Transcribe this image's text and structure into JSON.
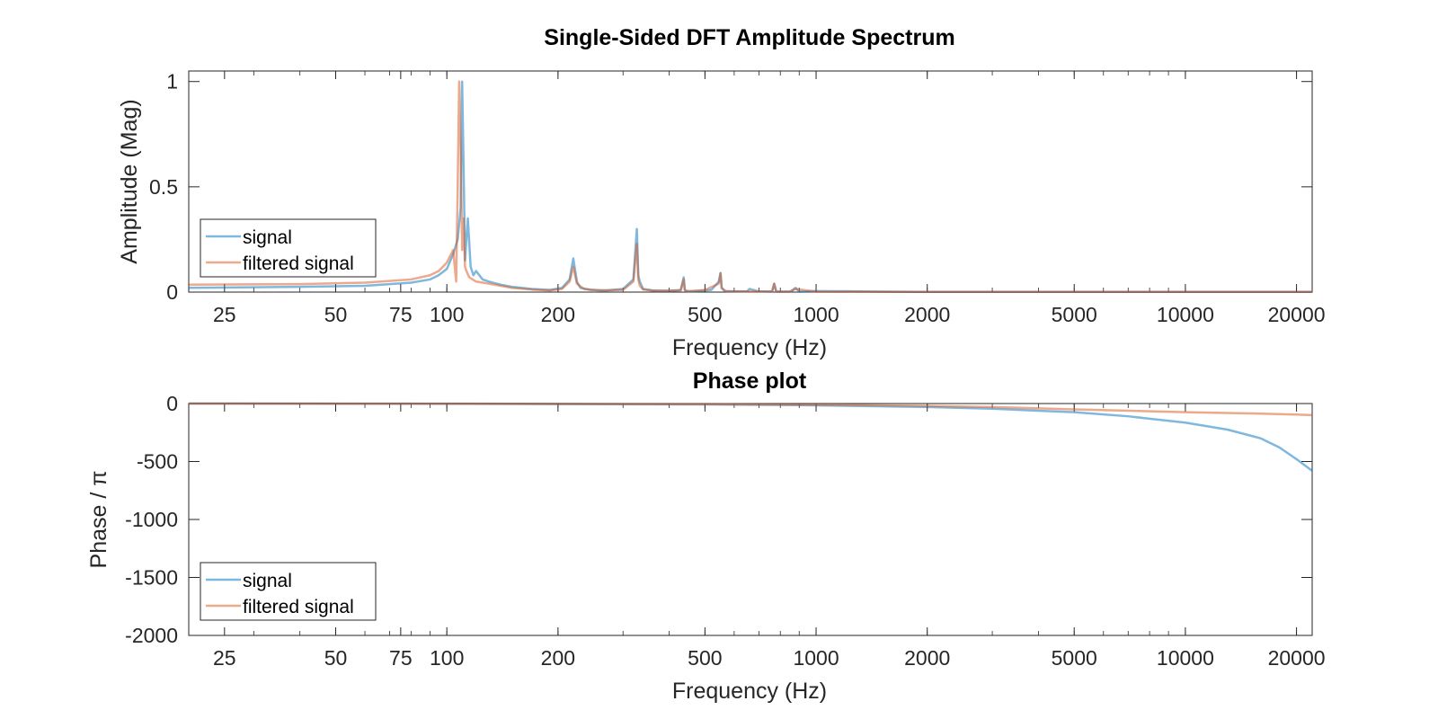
{
  "colors": {
    "signal": "#0072BD",
    "filtered": "#D95319",
    "axes": "#262626",
    "background": "#ffffff"
  },
  "chart_data": [
    {
      "type": "line",
      "title": "Single-Sided DFT Amplitude Spectrum",
      "xlabel": "Frequency (Hz)",
      "ylabel": "Amplitude (Mag)",
      "xscale": "log",
      "xlim": [
        20,
        22050
      ],
      "ylim": [
        0,
        1.05
      ],
      "xticks": [
        25,
        50,
        75,
        100,
        200,
        500,
        1000,
        2000,
        5000,
        10000,
        20000
      ],
      "xtick_labels": [
        "25",
        "50",
        "75",
        "100",
        "200",
        "500",
        "1000",
        "2000",
        "5000",
        "10000",
        "20000"
      ],
      "yticks": [
        0,
        0.5,
        1
      ],
      "ytick_labels": [
        "0",
        "0.5",
        "1"
      ],
      "grid": false,
      "legend_position": "bottom-left",
      "series": [
        {
          "name": "signal",
          "x": [
            20,
            40,
            60,
            80,
            90,
            95,
            100,
            104,
            107,
            109,
            110,
            111,
            112,
            114,
            116,
            118,
            120,
            125,
            130,
            140,
            150,
            170,
            190,
            205,
            215,
            220,
            225,
            230,
            245,
            270,
            300,
            320,
            327,
            330,
            333,
            340,
            360,
            400,
            430,
            438,
            441,
            445,
            470,
            520,
            545,
            551,
            555,
            565,
            600,
            650,
            660,
            700,
            760,
            770,
            780,
            850,
            880,
            900,
            1000,
            1100,
            1200,
            1300,
            1500,
            2000,
            3000,
            5000,
            10000,
            20000,
            22050
          ],
          "values": [
            0.02,
            0.025,
            0.03,
            0.045,
            0.06,
            0.08,
            0.11,
            0.18,
            0.25,
            0.4,
            1.0,
            0.6,
            0.15,
            0.35,
            0.12,
            0.08,
            0.1,
            0.06,
            0.05,
            0.035,
            0.025,
            0.015,
            0.01,
            0.02,
            0.06,
            0.16,
            0.05,
            0.02,
            0.01,
            0.008,
            0.015,
            0.06,
            0.3,
            0.08,
            0.05,
            0.015,
            0.008,
            0.006,
            0.01,
            0.07,
            0.01,
            0.005,
            0.004,
            0.01,
            0.05,
            0.09,
            0.02,
            0.005,
            0.003,
            0.003,
            0.015,
            0.003,
            0.002,
            0.04,
            0.002,
            0.002,
            0.02,
            0.002,
            0.005,
            0.004,
            0.004,
            0.003,
            0.002,
            0.001,
            0.001,
            0.001,
            0.001,
            0.001,
            0.001
          ]
        },
        {
          "name": "filtered signal",
          "x": [
            20,
            40,
            60,
            80,
            90,
            95,
            100,
            104,
            106,
            107,
            108,
            109,
            110,
            111,
            112,
            113,
            115,
            120,
            130,
            140,
            150,
            170,
            190,
            205,
            215,
            220,
            225,
            235,
            260,
            300,
            320,
            327,
            330,
            333,
            340,
            370,
            430,
            438,
            441,
            450,
            500,
            545,
            551,
            555,
            570,
            650,
            760,
            770,
            780,
            850,
            880,
            1000,
            2000,
            5000,
            10000,
            22050
          ],
          "values": [
            0.035,
            0.038,
            0.045,
            0.06,
            0.08,
            0.1,
            0.14,
            0.2,
            0.05,
            0.5,
            1.0,
            0.7,
            0.2,
            0.35,
            0.12,
            0.1,
            0.07,
            0.05,
            0.04,
            0.03,
            0.02,
            0.012,
            0.008,
            0.015,
            0.05,
            0.12,
            0.04,
            0.015,
            0.008,
            0.01,
            0.05,
            0.23,
            0.06,
            0.03,
            0.012,
            0.006,
            0.008,
            0.06,
            0.01,
            0.004,
            0.01,
            0.04,
            0.09,
            0.02,
            0.004,
            0.003,
            0.003,
            0.04,
            0.002,
            0.002,
            0.015,
            0.002,
            0.001,
            0.001,
            0.001,
            0.001
          ]
        }
      ],
      "legend": [
        "signal",
        "filtered signal"
      ]
    },
    {
      "type": "line",
      "title": "Phase plot",
      "xlabel": "Frequency (Hz)",
      "ylabel": "Phase / π",
      "xscale": "log",
      "xlim": [
        20,
        22050
      ],
      "ylim": [
        -2000,
        0
      ],
      "xticks": [
        25,
        50,
        75,
        100,
        200,
        500,
        1000,
        2000,
        5000,
        10000,
        20000
      ],
      "xtick_labels": [
        "25",
        "50",
        "75",
        "100",
        "200",
        "500",
        "1000",
        "2000",
        "5000",
        "10000",
        "20000"
      ],
      "yticks": [
        0,
        -500,
        -1000,
        -1500,
        -2000
      ],
      "ytick_labels": [
        "0",
        "-500",
        "-1000",
        "-1500",
        "-2000"
      ],
      "grid": false,
      "legend_position": "bottom-left",
      "series": [
        {
          "name": "signal",
          "x": [
            20,
            100,
            500,
            1000,
            2000,
            3000,
            5000,
            7000,
            10000,
            13000,
            16000,
            18000,
            20000,
            22050
          ],
          "values": [
            0,
            -2,
            -8,
            -15,
            -30,
            -45,
            -75,
            -110,
            -165,
            -225,
            -300,
            -380,
            -480,
            -580
          ]
        },
        {
          "name": "filtered signal",
          "x": [
            20,
            100,
            500,
            1000,
            2000,
            3000,
            5000,
            10000,
            15000,
            20000,
            22050
          ],
          "values": [
            0,
            -1,
            -5,
            -10,
            -20,
            -30,
            -50,
            -75,
            -85,
            -95,
            -100
          ]
        }
      ],
      "legend": [
        "signal",
        "filtered signal"
      ]
    }
  ]
}
